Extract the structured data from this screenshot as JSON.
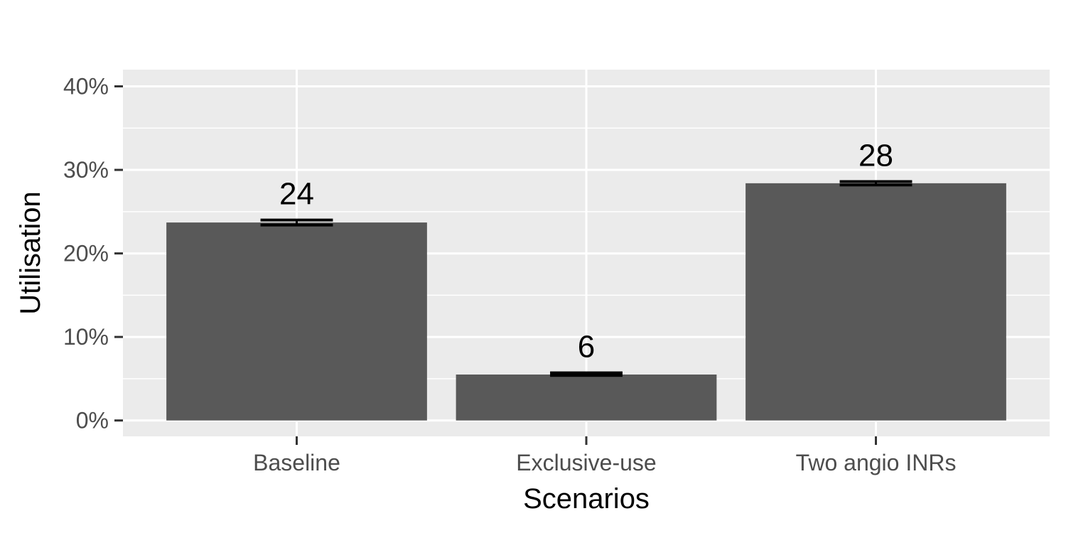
{
  "chart_data": {
    "type": "bar",
    "title": "",
    "xlabel": "Scenarios",
    "ylabel": "Utilisation",
    "categories": [
      "Baseline",
      "Exclusive-use",
      "Two angio INRs"
    ],
    "values": [
      23.7,
      5.5,
      28.4
    ],
    "error_bars": [
      {
        "low": 23.4,
        "high": 24.0
      },
      {
        "low": 5.4,
        "high": 5.7
      },
      {
        "low": 28.2,
        "high": 28.6
      }
    ],
    "data_labels": [
      "24",
      "6",
      "28"
    ],
    "ylim": [
      -1.9,
      42
    ],
    "y_ticks": [
      0,
      10,
      20,
      30,
      40
    ],
    "y_tick_labels": [
      "0%",
      "10%",
      "20%",
      "30%",
      "40%"
    ],
    "grid": true,
    "legend": "none",
    "colors": {
      "bar": "#595959",
      "panel_background": "#ebebeb",
      "grid": "#ffffff",
      "error_bar": "#000000"
    }
  }
}
